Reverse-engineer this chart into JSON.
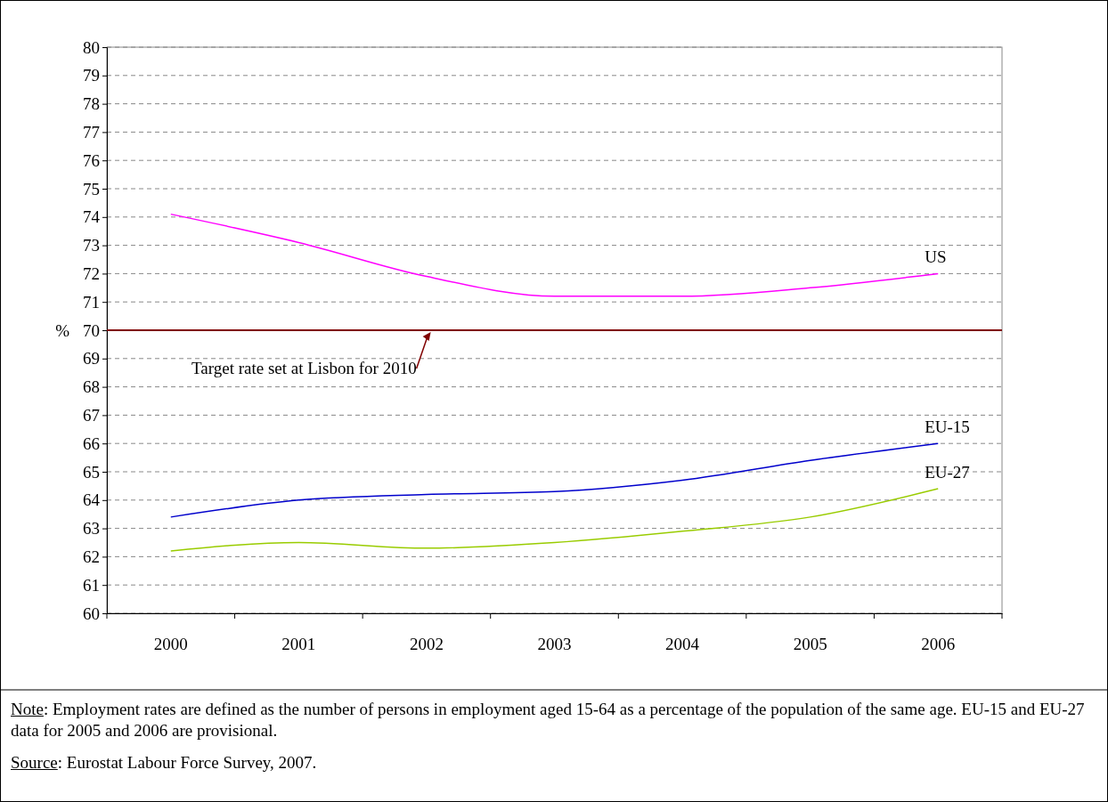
{
  "chart_data": {
    "type": "line",
    "ylabel": "%",
    "categories": [
      "2000",
      "2001",
      "2002",
      "2003",
      "2004",
      "2005",
      "2006"
    ],
    "series": [
      {
        "name": "US",
        "color": "#ff00ff",
        "values": [
          74.1,
          73.1,
          71.9,
          71.2,
          71.2,
          71.5,
          72.0
        ]
      },
      {
        "name": "EU-15",
        "color": "#0000cc",
        "values": [
          63.4,
          64.0,
          64.2,
          64.3,
          64.7,
          65.4,
          66.0
        ]
      },
      {
        "name": "EU-27",
        "color": "#99cc00",
        "values": [
          62.2,
          62.5,
          62.3,
          62.5,
          62.9,
          63.4,
          64.4
        ]
      }
    ],
    "ylim": [
      60,
      80
    ],
    "yticks": [
      60,
      61,
      62,
      63,
      64,
      65,
      66,
      67,
      68,
      69,
      70,
      71,
      72,
      73,
      74,
      75,
      76,
      77,
      78,
      79,
      80
    ],
    "grid": "y",
    "line_style": "solid",
    "marker": "none",
    "ref_lines": [
      {
        "axis": "y",
        "value": 70,
        "label": "Target rate set at Lisbon for 2010",
        "color": "#800000"
      }
    ],
    "annotations": [
      "Note: Employment rates are defined as the number of persons in employment aged 15-64 as a percentage of the population of the same age. EU-15 and EU-27 data for 2005 and 2006 are provisional.",
      "Source: Eurostat Labour Force Survey, 2007."
    ]
  }
}
